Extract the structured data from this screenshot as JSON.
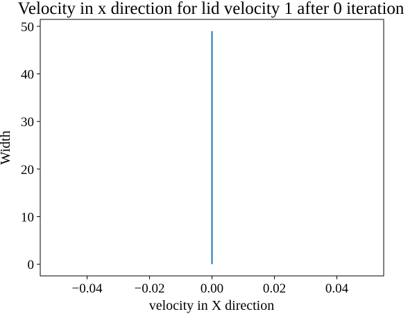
{
  "chart_data": {
    "type": "line",
    "title": "Velocity in x direction for lid velocity 1 after 0 iteration",
    "xlabel": "velocity in X direction",
    "ylabel": "Width",
    "xlim": [
      -0.055,
      0.055
    ],
    "ylim": [
      -2.45,
      51.45
    ],
    "xticks": [
      -0.04,
      -0.02,
      0.0,
      0.02,
      0.04
    ],
    "xtick_labels": [
      "−0.04",
      "−0.02",
      "0.00",
      "0.02",
      "0.04"
    ],
    "yticks": [
      0,
      10,
      20,
      30,
      40,
      50
    ],
    "ytick_labels": [
      "0",
      "10",
      "20",
      "30",
      "40",
      "50"
    ],
    "grid": false,
    "series": [
      {
        "color": "#1f77b4",
        "x": [
          0,
          0
        ],
        "y": [
          0,
          49
        ]
      }
    ]
  }
}
